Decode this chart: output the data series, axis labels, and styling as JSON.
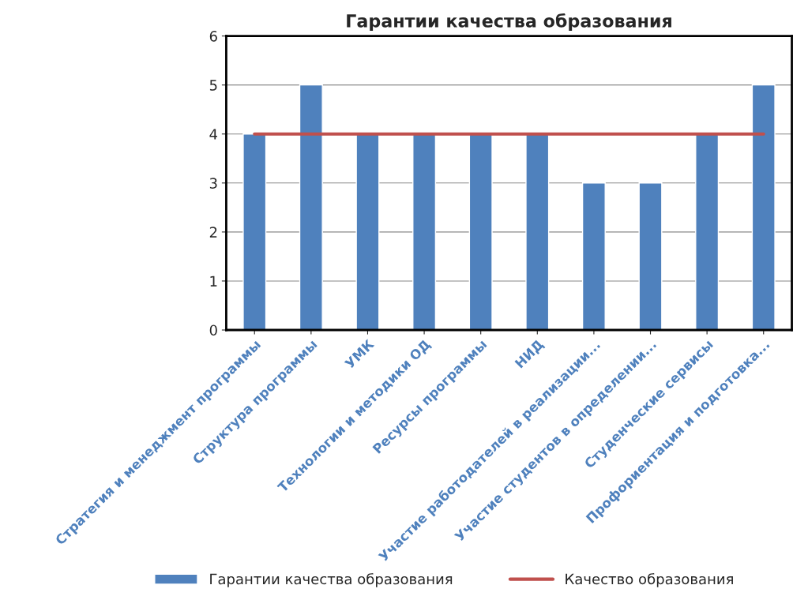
{
  "chart_data": {
    "type": "bar",
    "title": "Гарантии качества образования",
    "categories": [
      "Стратегия и менеджмент программы",
      "Структура программы",
      "УМК",
      "Технологии и методики ОД",
      "Ресурсы программы",
      "НИД",
      "Участие работодателей в реализации...",
      "Участие студентов в определении...",
      "Студенческие сервисы",
      "Профориентация и подготовка..."
    ],
    "series": [
      {
        "name": "Гарантии качества образования",
        "color": "#4f81bd",
        "values": [
          4,
          5,
          4,
          4,
          4,
          4,
          3,
          3,
          4,
          5
        ]
      },
      {
        "name": "Качество образования",
        "type": "line",
        "color": "#c0504d",
        "values": [
          4,
          4,
          4,
          4,
          4,
          4,
          4,
          4,
          4,
          4
        ]
      }
    ],
    "ylim": [
      0,
      6
    ],
    "yticks": [
      0,
      1,
      2,
      3,
      4,
      5,
      6
    ],
    "grid": "y",
    "legend": "bottom"
  }
}
